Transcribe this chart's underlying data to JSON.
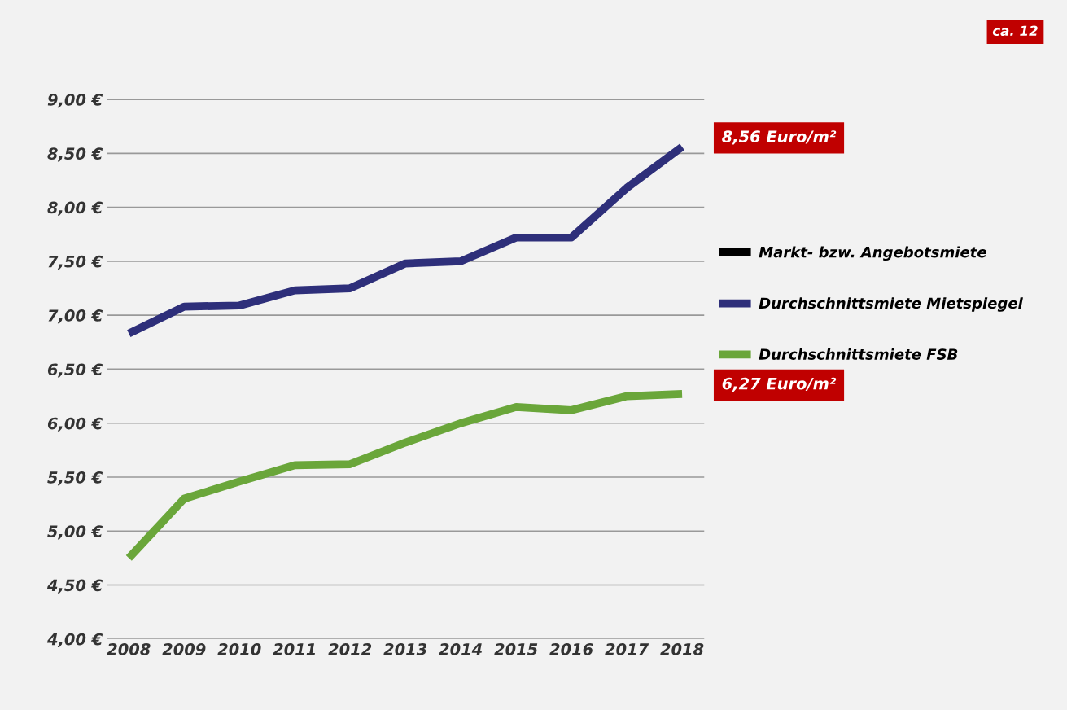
{
  "chart_data": {
    "type": "line",
    "categories": [
      "2008",
      "2009",
      "2010",
      "2011",
      "2012",
      "2013",
      "2014",
      "2015",
      "2016",
      "2017",
      "2018"
    ],
    "series": [
      {
        "name": "Markt- bzw. Angebotsmiete",
        "color": "#000000",
        "values": [
          null,
          null,
          null,
          null,
          null,
          null,
          null,
          null,
          null,
          null,
          null
        ]
      },
      {
        "name": "Durchschnittsmiete Mietspiegel",
        "color": "#2e2f7a",
        "values": [
          6.83,
          7.08,
          7.09,
          7.23,
          7.25,
          7.48,
          7.5,
          7.72,
          7.72,
          8.18,
          8.56
        ]
      },
      {
        "name": "Durchschnittsmiete FSB",
        "color": "#6aa63a",
        "values": [
          4.75,
          5.3,
          5.46,
          5.61,
          5.62,
          5.82,
          6.0,
          6.15,
          6.12,
          6.25,
          6.27
        ]
      }
    ],
    "ylim": [
      4,
      9
    ],
    "yticks": [
      {
        "value": 4,
        "label": "4,00 €"
      },
      {
        "value": 4.5,
        "label": "4,50 €"
      },
      {
        "value": 5,
        "label": "5,00 €"
      },
      {
        "value": 5.5,
        "label": "5,50 €"
      },
      {
        "value": 6,
        "label": "6,00 €"
      },
      {
        "value": 6.5,
        "label": "6,50 €"
      },
      {
        "value": 7,
        "label": "7,00 €"
      },
      {
        "value": 7.5,
        "label": "7,50 €"
      },
      {
        "value": 8,
        "label": "8,00 €"
      },
      {
        "value": 8.5,
        "label": "8,50 €"
      },
      {
        "value": 9,
        "label": "9,00 €"
      }
    ],
    "annotations": [
      {
        "text": "8,56 Euro/m²",
        "x": "2018",
        "y": 8.56
      },
      {
        "text": "6,27 Euro/m²",
        "x": "2018",
        "y": 6.27
      },
      "ca. 12"
    ],
    "grid": "y",
    "legend": "right",
    "marker": "none",
    "line_style": "solid"
  }
}
